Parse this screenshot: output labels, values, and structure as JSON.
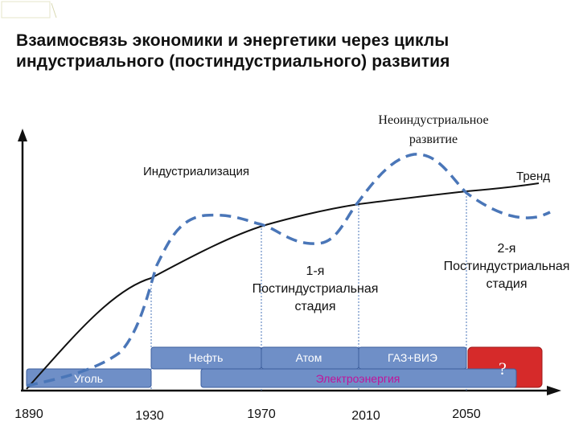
{
  "slide": {
    "title_line1": "Взаимосвязь экономики и энергетики через циклы",
    "title_line2": "индустриального (постиндустриального) развития"
  },
  "diagram": {
    "annotations": {
      "industrialization": "Индустриализация",
      "neo_line1": "Неоиндустриальное",
      "neo_line2": "развитие",
      "trend": "Тренд",
      "stage1_line1": "1-я",
      "stage1_line2": "Постиндустриальная",
      "stage1_line3": "стадия",
      "stage2_line1": "2-я",
      "stage2_line2": "Постиндустриальная",
      "stage2_line3": "стадия"
    },
    "energy_bars": {
      "coal": "Уголь",
      "oil": "Нефть",
      "atom": "Атом",
      "gas_res": "ГАЗ+ВИЭ",
      "electricity": "Электроэнергия",
      "unknown": "?"
    },
    "years": [
      "1890",
      "1930",
      "1970",
      "2010",
      "2050"
    ],
    "colors": {
      "wave": "#4a76b8",
      "trend": "#111111",
      "bar_blue": "#6f8fc7",
      "bar_blue_border": "#3d5f9e",
      "bar_red": "#d62a2a",
      "electricity_text": "#c0149b",
      "marker": "#4a76b8"
    }
  }
}
